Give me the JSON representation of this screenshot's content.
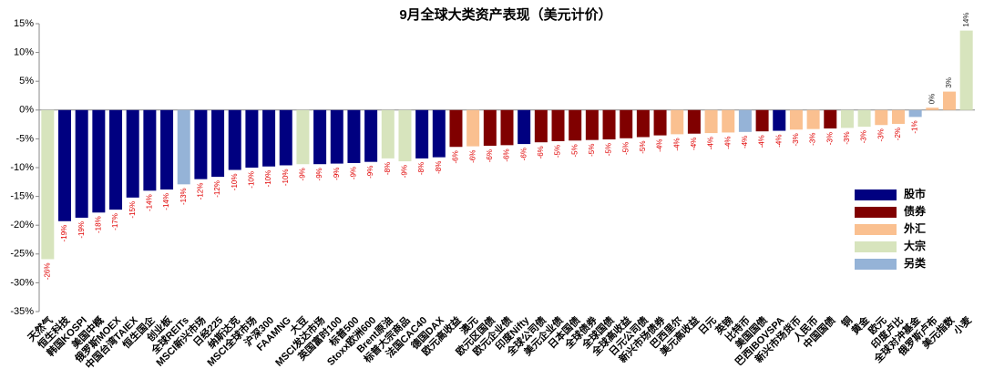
{
  "chart_data": {
    "type": "bar",
    "title": "9月全球大类资产表现（美元计价）",
    "categories": [
      "天然气",
      "恒生科技",
      "韩国KOSPI",
      "美国中概",
      "俄罗斯MOEX",
      "中国台湾TAIEX",
      "恒生国企",
      "创业板",
      "全球REITs",
      "MSCI新兴市场",
      "日经225",
      "纳斯达克",
      "MSCI全球市场",
      "沪深300",
      "FAAMNG",
      "大豆",
      "MSCI发达市场",
      "英国富时100",
      "标普500",
      "Stoxx欧洲600",
      "Brent原油",
      "标普大宗商品",
      "法国CAC40",
      "德国DAX",
      "欧元高收益",
      "澳元",
      "欧元区国债",
      "欧元企业债",
      "印度Nifty",
      "全球公司债",
      "美元企业债",
      "日本国债",
      "全球债券",
      "全球国债",
      "全球高收益",
      "日元公司债",
      "新兴市场债券",
      "巴西里尔",
      "美元高收益",
      "日元",
      "英镑",
      "比特币",
      "美国国债",
      "巴西IBOVSPA",
      "新兴市场货币",
      "人民币",
      "中国国债",
      "铜",
      "黄金",
      "欧元",
      "印度卢比",
      "全球对冲基金",
      "俄罗斯卢布",
      "美元指数",
      "小麦"
    ],
    "values": [
      -25.9,
      -19.3,
      -18.7,
      -17.8,
      -17.3,
      -15.2,
      -14.0,
      -13.8,
      -12.9,
      -12.0,
      -11.6,
      -10.4,
      -10.0,
      -9.8,
      -9.6,
      -9.4,
      -9.4,
      -9.3,
      -9.2,
      -9.0,
      -8.4,
      -8.9,
      -8.4,
      -8.2,
      -6.4,
      -6.3,
      -6.2,
      -6.1,
      -5.9,
      -5.6,
      -5.4,
      -5.3,
      -5.2,
      -5.1,
      -4.9,
      -4.7,
      -4.4,
      -4.2,
      -4.1,
      -4.0,
      -3.9,
      -3.8,
      -3.7,
      -3.6,
      -3.4,
      -3.3,
      -3.2,
      -3.1,
      -2.9,
      -2.6,
      -2.4,
      -1.2,
      0.4,
      3.2,
      13.8
    ],
    "value_labels": [
      "-26%",
      "-19%",
      "-19%",
      "-18%",
      "-17%",
      "-15%",
      "-14%",
      "-14%",
      "-13%",
      "-12%",
      "-12%",
      "-10%",
      "-10%",
      "-10%",
      "-10%",
      "-9%",
      "-9%",
      "-9%",
      "-9%",
      "-9%",
      "-8%",
      "-9%",
      "-8%",
      "-8%",
      "-6%",
      "-6%",
      "-6%",
      "-6%",
      "-6%",
      "-6%",
      "-5%",
      "-5%",
      "-5%",
      "-5%",
      "-5%",
      "-5%",
      "-4%",
      "-4%",
      "-4%",
      "-4%",
      "-4%",
      "-4%",
      "-4%",
      "-4%",
      "-3%",
      "-3%",
      "-3%",
      "-3%",
      "-3%",
      "-3%",
      "-2%",
      "-1%",
      "0%",
      "3%",
      "14%"
    ],
    "colors": [
      "#d7e4bd",
      "#000080",
      "#000080",
      "#000080",
      "#000080",
      "#000080",
      "#000080",
      "#000080",
      "#95b3d7",
      "#000080",
      "#000080",
      "#000080",
      "#000080",
      "#000080",
      "#000080",
      "#d7e4bd",
      "#000080",
      "#000080",
      "#000080",
      "#000080",
      "#d7e4bd",
      "#d7e4bd",
      "#000080",
      "#000080",
      "#800000",
      "#fac090",
      "#800000",
      "#800000",
      "#000080",
      "#800000",
      "#800000",
      "#800000",
      "#800000",
      "#800000",
      "#800000",
      "#800000",
      "#800000",
      "#fac090",
      "#800000",
      "#fac090",
      "#fac090",
      "#95b3d7",
      "#800000",
      "#000080",
      "#fac090",
      "#fac090",
      "#800000",
      "#d7e4bd",
      "#d7e4bd",
      "#fac090",
      "#fac090",
      "#95b3d7",
      "#fac090",
      "#fac090",
      "#d7e4bd"
    ],
    "legend": [
      {
        "name": "股市",
        "color": "#000080"
      },
      {
        "name": "债券",
        "color": "#800000"
      },
      {
        "name": "外汇",
        "color": "#fac090"
      },
      {
        "name": "大宗",
        "color": "#d7e4bd"
      },
      {
        "name": "另类",
        "color": "#95b3d7"
      }
    ],
    "ylim": [
      -35,
      15
    ],
    "yticks": [
      {
        "value": -35,
        "label": "-35%"
      },
      {
        "value": -30,
        "label": "-30%"
      },
      {
        "value": -25,
        "label": "-25%"
      },
      {
        "value": -20,
        "label": "-20%"
      },
      {
        "value": -15,
        "label": "-15%"
      },
      {
        "value": -10,
        "label": "-10%"
      },
      {
        "value": -5,
        "label": "-5%"
      },
      {
        "value": 0,
        "label": "0%"
      },
      {
        "value": 5,
        "label": "5%"
      },
      {
        "value": 10,
        "label": "10%"
      },
      {
        "value": 15,
        "label": "15%"
      }
    ],
    "grid": false
  }
}
